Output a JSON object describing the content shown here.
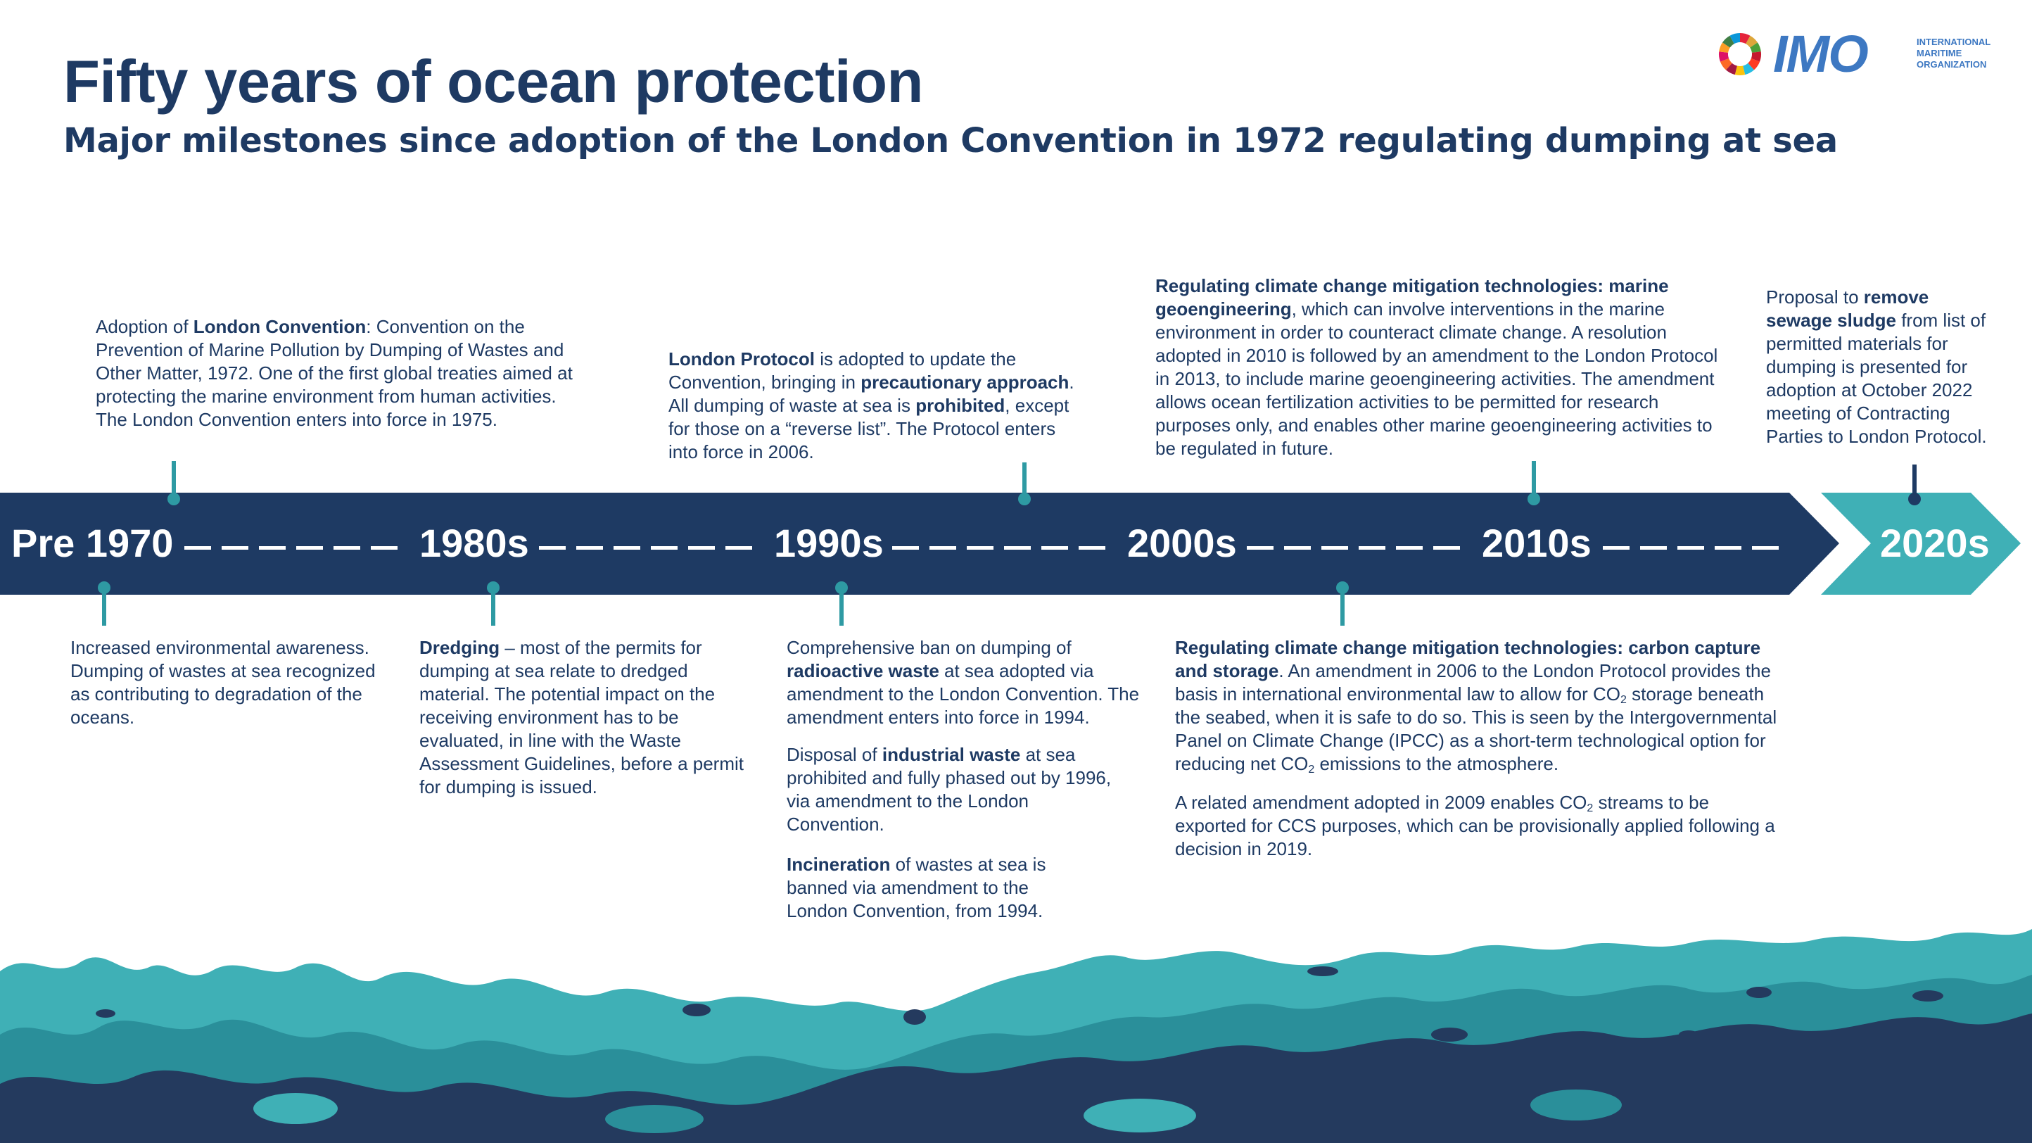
{
  "header": {
    "title": "Fifty years of ocean protection",
    "subtitle": "Major milestones since adoption of the London Convention in 1972 regulating dumping at sea"
  },
  "logo": {
    "icon": "sdg-wheel-icon",
    "wordmark": "IMO",
    "org_lines": [
      "INTERNATIONAL",
      "MARITIME",
      "ORGANIZATION"
    ]
  },
  "colors": {
    "navy": "#1e3a63",
    "teal": "#2e9aa3",
    "light_teal": "#3fb0b6",
    "white": "#ffffff"
  },
  "timeline": {
    "eras": [
      "Pre 1970",
      "1980s",
      "1990s",
      "2000s",
      "2010s",
      "2020s"
    ]
  },
  "above": {
    "london_convention": {
      "t1": "Adoption of ",
      "b1": "London Convention",
      "t2": ": Convention on the Prevention of Marine Pollution by Dumping of Wastes and Other Matter, 1972. One of the first global treaties aimed at protecting the marine environment from human activities. The London Convention enters into force in 1975."
    },
    "london_protocol": {
      "b1": "London Protocol",
      "t1": " is adopted to update the Convention, bringing in ",
      "b2": "precautionary approach",
      "t2": ". All dumping of waste at sea is ",
      "b3": "prohibited",
      "t3": ", except for those on a “reverse list”. The Protocol enters into force in 2006."
    },
    "geoengineering": {
      "b1": "Regulating climate change mitigation technologies: marine geoengineering",
      "t1": ", which can involve interventions in the marine environment in order to counteract climate change. A resolution adopted in 2010 is followed by an amendment to the London Protocol in 2013, to include marine geoengineering activities. The amendment allows ocean fertilization activities to be permitted for research purposes only, and enables other marine geoengineering activities to be regulated in future."
    },
    "sewage": {
      "t1": "Proposal to ",
      "b1": "remove sewage sludge",
      "t2": " from list of permitted materials for dumping is presented for adoption at October 2022 meeting of Contracting Parties to London Protocol."
    }
  },
  "below": {
    "awareness": {
      "t1": "Increased environmental awareness. Dumping of wastes at sea recognized as contributing to degradation of the oceans."
    },
    "dredging": {
      "b1": "Dredging",
      "t1": " – most of the permits for dumping at sea relate to dredged material. The potential impact on the receiving environment has to be evaluated, in line with the Waste Assessment Guidelines, before a permit for dumping is issued."
    },
    "radioactive": {
      "t1": "Comprehensive ban on dumping of ",
      "b1": "radioactive waste",
      "t2": " at sea adopted via amendment to the London Convention. The amendment enters into force in 1994."
    },
    "industrial": {
      "t1": "Disposal of ",
      "b1": "industrial waste",
      "t2": " at sea prohibited and fully phased out by 1996, via amendment to the London Convention."
    },
    "incineration": {
      "b1": "Incineration",
      "t1": " of wastes at sea is banned via amendment to the London Convention, from 1994."
    },
    "ccs": {
      "b1": "Regulating climate change mitigation technologies: carbon capture and storage",
      "t1": ". An amendment in 2006 to the London Protocol provides the basis in international environmental law to allow for CO",
      "s1": "2",
      "t2": " storage beneath the seabed, when it is safe to do so. This is seen by the Intergovernmental Panel on Climate Change (IPCC) as a short-term technological option for reducing net CO",
      "s2": "2",
      "t3": " emissions to the atmosphere."
    },
    "ccs2": {
      "t1": "A related amendment adopted in 2009 enables CO",
      "s1": "2",
      "t2": " streams to be exported for CCS purposes, which can be provisionally applied following a decision in 2019."
    }
  }
}
